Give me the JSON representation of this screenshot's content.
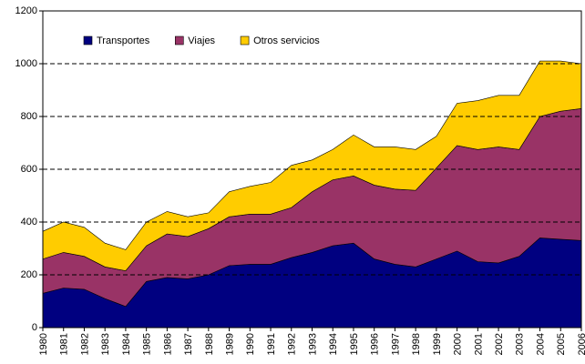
{
  "chart_data": {
    "type": "stacked_area",
    "x": [
      1980,
      1981,
      1982,
      1983,
      1984,
      1985,
      1986,
      1987,
      1988,
      1989,
      1990,
      1991,
      1992,
      1993,
      1994,
      1995,
      1996,
      1997,
      1998,
      1999,
      2000,
      2001,
      2002,
      2003,
      2004,
      2005,
      2006
    ],
    "xlim": [
      1980,
      2006
    ],
    "ylim": [
      0,
      1200
    ],
    "yticks": [
      0,
      200,
      400,
      600,
      800,
      1000,
      1200
    ],
    "grid": true,
    "series": [
      {
        "name": "Transportes",
        "color": "#000080",
        "values": [
          130,
          150,
          145,
          110,
          80,
          175,
          190,
          185,
          200,
          235,
          240,
          240,
          265,
          285,
          310,
          320,
          260,
          240,
          230,
          260,
          290,
          250,
          245,
          270,
          340,
          335,
          330
        ]
      },
      {
        "name": "Viajes",
        "color": "#993366",
        "values": [
          130,
          135,
          125,
          120,
          135,
          135,
          165,
          160,
          175,
          185,
          190,
          190,
          190,
          230,
          250,
          255,
          280,
          285,
          290,
          345,
          400,
          425,
          440,
          405,
          460,
          485,
          500
        ]
      },
      {
        "name": "Otros servicios",
        "color": "#ffcc00",
        "values": [
          105,
          115,
          110,
          90,
          80,
          90,
          85,
          75,
          60,
          95,
          105,
          120,
          160,
          120,
          115,
          155,
          145,
          160,
          155,
          120,
          160,
          185,
          195,
          205,
          210,
          190,
          170
        ]
      }
    ]
  }
}
